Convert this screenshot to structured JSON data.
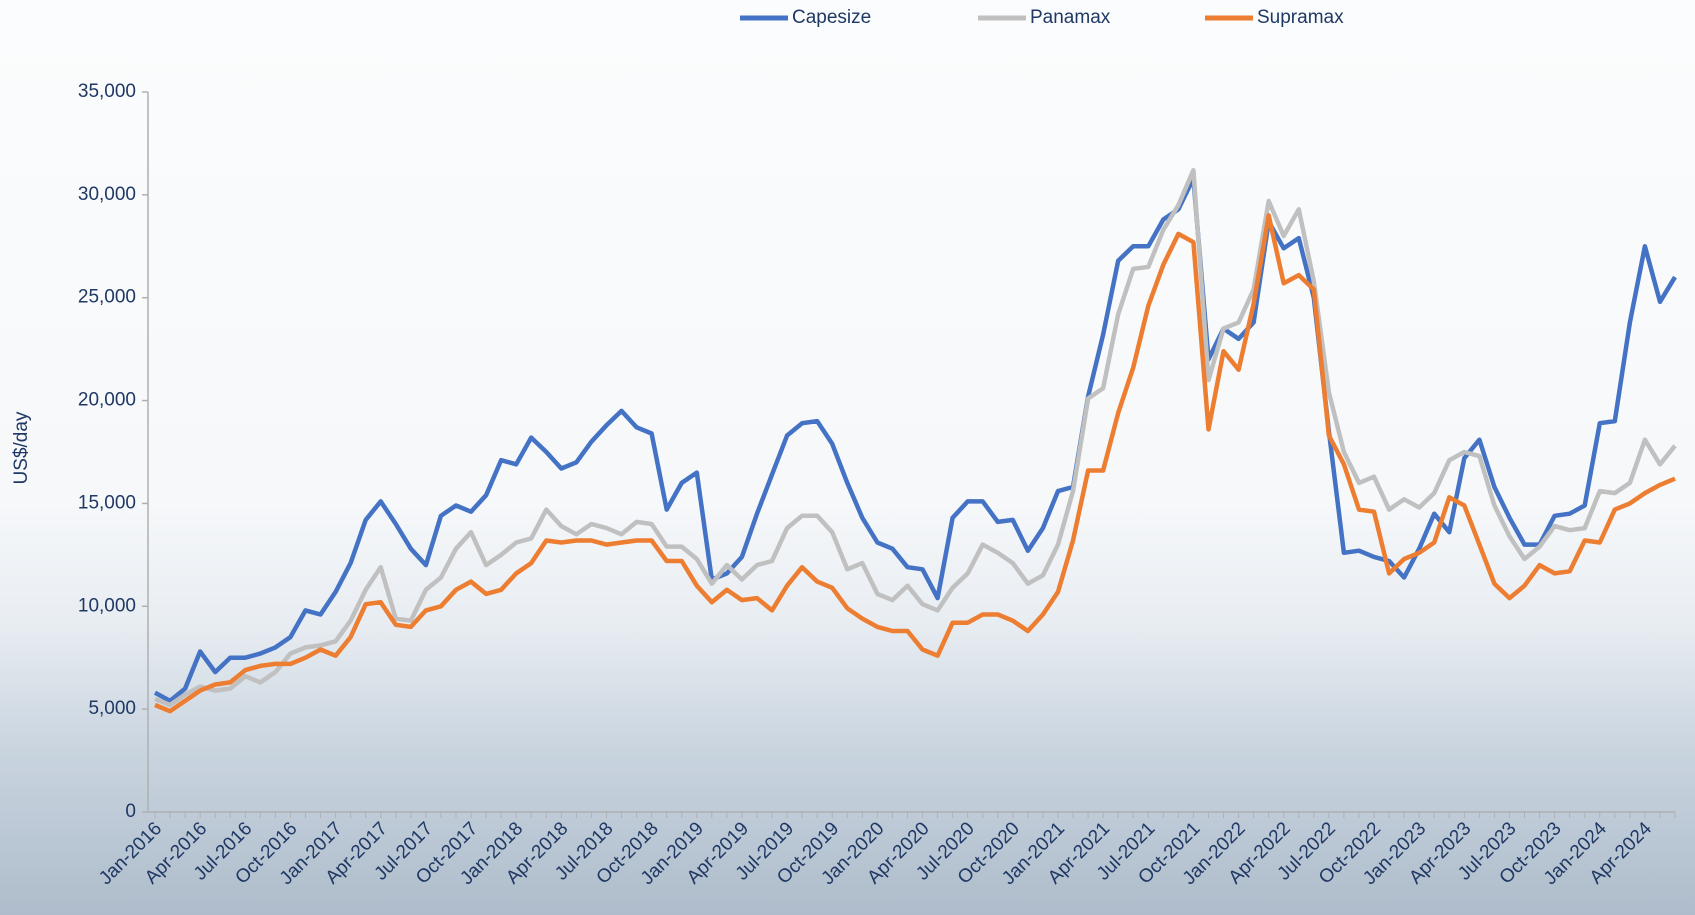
{
  "chart_data": {
    "type": "line",
    "y_label": "US$/day",
    "categories": [
      "Jan-2016",
      null,
      null,
      "Apr-2016",
      null,
      null,
      "Jul-2016",
      null,
      null,
      "Oct-2016",
      null,
      null,
      "Jan-2017",
      null,
      null,
      "Apr-2017",
      null,
      null,
      "Jul-2017",
      null,
      null,
      "Oct-2017",
      null,
      null,
      "Jan-2018",
      null,
      null,
      "Apr-2018",
      null,
      null,
      "Jul-2018",
      null,
      null,
      "Oct-2018",
      null,
      null,
      "Jan-2019",
      null,
      null,
      "Apr-2019",
      null,
      null,
      "Jul-2019",
      null,
      null,
      "Oct-2019",
      null,
      null,
      "Jan-2020",
      null,
      null,
      "Apr-2020",
      null,
      null,
      "Jul-2020",
      null,
      null,
      "Oct-2020",
      null,
      null,
      "Jan-2021",
      null,
      null,
      "Apr-2021",
      null,
      null,
      "Jul-2021",
      null,
      null,
      "Oct-2021",
      null,
      null,
      "Jan-2022",
      null,
      null,
      "Apr-2022",
      null,
      null,
      "Jul-2022",
      null,
      null,
      "Oct-2022",
      null,
      null,
      "Jan-2023",
      null,
      null,
      "Apr-2023",
      null,
      null,
      "Jul-2023",
      null,
      null,
      "Oct-2023",
      null,
      null,
      "Jan-2024",
      null,
      null,
      "Apr-2024",
      null,
      null
    ],
    "series": [
      {
        "name": "Capesize",
        "color": "#4472c4",
        "values": [
          5800,
          5400,
          6000,
          7800,
          6800,
          7500,
          7500,
          7700,
          8000,
          8500,
          9800,
          9600,
          10700,
          12100,
          14200,
          15100,
          14000,
          12800,
          12000,
          14400,
          14900,
          14600,
          15400,
          17100,
          16900,
          18200,
          17500,
          16700,
          17000,
          18000,
          18800,
          19500,
          18700,
          18400,
          14700,
          16000,
          16500,
          11300,
          11600,
          12400,
          14500,
          16400,
          18300,
          18900,
          19000,
          17900,
          16000,
          14300,
          13100,
          12800,
          11900,
          11800,
          10400,
          14300,
          15100,
          15100,
          14100,
          14200,
          12700,
          13800,
          15600,
          15800,
          20200,
          23200,
          26800,
          27500,
          27500,
          28800,
          29300,
          30800,
          22000,
          23500,
          23000,
          23800,
          28700,
          27400,
          27900,
          25000,
          18500,
          12600,
          12700,
          12400,
          12200,
          11400,
          12800,
          14500,
          13600,
          17200,
          18100,
          15800,
          14300,
          13000,
          13000,
          14400,
          14500,
          14900,
          18900,
          19000,
          23800,
          27500,
          24800,
          26000
        ]
      },
      {
        "name": "Panamax",
        "color": "#c0c0c0",
        "values": [
          5500,
          5200,
          5700,
          6100,
          5900,
          6000,
          6600,
          6300,
          6800,
          7700,
          8000,
          8100,
          8300,
          9300,
          10800,
          11900,
          9400,
          9300,
          10800,
          11400,
          12800,
          13600,
          12000,
          12500,
          13100,
          13300,
          14700,
          13900,
          13500,
          14000,
          13800,
          13500,
          14100,
          14000,
          12900,
          12900,
          12300,
          11100,
          12000,
          11300,
          12000,
          12200,
          13800,
          14400,
          14400,
          13600,
          11800,
          12100,
          10600,
          10300,
          11000,
          10100,
          9800,
          10900,
          11600,
          13000,
          12600,
          12100,
          11100,
          11500,
          13000,
          15600,
          20100,
          20600,
          24200,
          26400,
          26500,
          28300,
          29500,
          31200,
          21000,
          23500,
          23800,
          25400,
          29700,
          28000,
          29300,
          25800,
          20400,
          17500,
          16000,
          16300,
          14700,
          15200,
          14800,
          15500,
          17100,
          17500,
          17300,
          14900,
          13400,
          12300,
          12900,
          13900,
          13700,
          13800,
          15600,
          15500,
          16000,
          18100,
          16900,
          17800
        ]
      },
      {
        "name": "Supramax",
        "color": "#ed7d31",
        "values": [
          5200,
          4900,
          5400,
          5900,
          6200,
          6300,
          6900,
          7100,
          7200,
          7200,
          7500,
          7900,
          7600,
          8500,
          10100,
          10200,
          9100,
          9000,
          9800,
          10000,
          10800,
          11200,
          10600,
          10800,
          11600,
          12100,
          13200,
          13100,
          13200,
          13200,
          13000,
          13100,
          13200,
          13200,
          12200,
          12200,
          11000,
          10200,
          10800,
          10300,
          10400,
          9800,
          11000,
          11900,
          11200,
          10900,
          9900,
          9400,
          9000,
          8800,
          8800,
          7900,
          7600,
          9200,
          9200,
          9600,
          9600,
          9300,
          8800,
          9600,
          10700,
          13200,
          16600,
          16600,
          19400,
          21600,
          24600,
          26600,
          28100,
          27700,
          18600,
          22400,
          21500,
          24700,
          29000,
          25700,
          26100,
          25400,
          18300,
          16900,
          14700,
          14600,
          11600,
          12300,
          12600,
          13100,
          15300,
          14900,
          13000,
          11100,
          10400,
          11000,
          12000,
          11600,
          11700,
          13200,
          13100,
          14700,
          15000,
          15500,
          15900,
          16200
        ]
      }
    ],
    "ylim": [
      0,
      35000
    ],
    "yticks": [
      0,
      {
        "value": 5000,
        "label": "5,000"
      },
      {
        "value": 10000,
        "label": "10,000"
      },
      {
        "value": 15000,
        "label": "15,000"
      },
      {
        "value": 20000,
        "label": "20,000"
      },
      {
        "value": 25000,
        "label": "25,000"
      },
      {
        "value": 30000,
        "label": "30,000"
      },
      {
        "value": 35000,
        "label": "35,000"
      }
    ],
    "legend": "top"
  }
}
